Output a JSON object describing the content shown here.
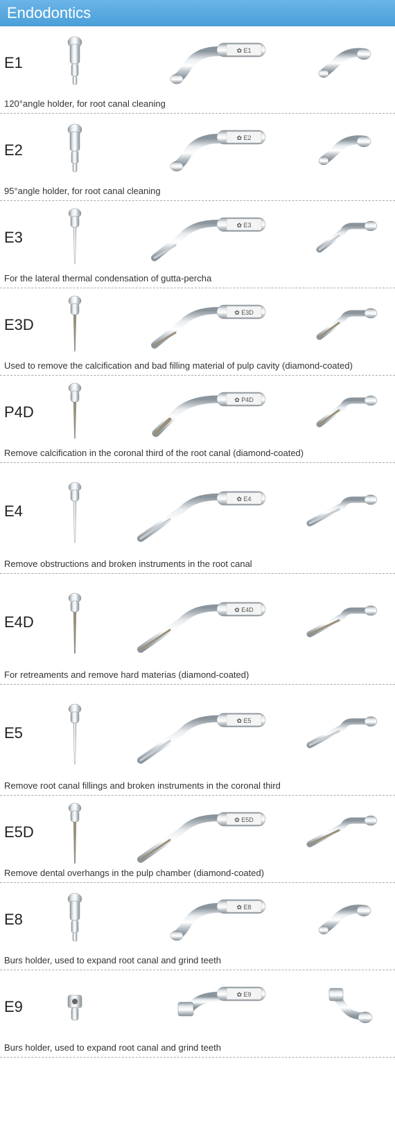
{
  "header": {
    "title": "Endodontics"
  },
  "rows": [
    {
      "code": "E1",
      "label": "E1",
      "desc": "120°angle holder, for root canal cleaning",
      "shape": "holder",
      "size": "short"
    },
    {
      "code": "E2",
      "label": "E2",
      "desc": "95°angle holder, for root canal cleaning",
      "shape": "holder",
      "size": "short"
    },
    {
      "code": "E3",
      "label": "E3",
      "desc": "For the lateral thermal condensation of gutta-percha",
      "shape": "thin",
      "size": "normal"
    },
    {
      "code": "E3D",
      "label": "E3D",
      "desc": "Used to remove the calcification and bad filling material of pulp cavity (diamond-coated)",
      "shape": "thin-diamond",
      "size": "normal"
    },
    {
      "code": "P4D",
      "label": "P4D",
      "desc": "Remove calcification in the coronal third of the root canal (diamond-coated)",
      "shape": "curved-diamond",
      "size": "normal"
    },
    {
      "code": "E4",
      "label": "E4",
      "desc": "Remove obstructions and broken instruments in the root canal",
      "shape": "long-thin",
      "size": "tall"
    },
    {
      "code": "E4D",
      "label": "E4D",
      "desc": "For retreaments and remove hard materias (diamond-coated)",
      "shape": "long-thin-diamond",
      "size": "tall"
    },
    {
      "code": "E5",
      "label": "E5",
      "desc": "Remove root canal fillings and broken instruments in the coronal third",
      "shape": "long-thin",
      "size": "tall"
    },
    {
      "code": "E5D",
      "label": "E5D",
      "desc": "Remove dental overhangs in the pulp chamber (diamond-coated)",
      "shape": "long-thin-diamond",
      "size": "normal"
    },
    {
      "code": "E8",
      "label": "E8",
      "desc": "Burs holder, used to expand root canal and grind teeth",
      "shape": "burs",
      "size": "short"
    },
    {
      "code": "E9",
      "label": "E9",
      "desc": "Burs holder, used to expand root canal and grind teeth",
      "shape": "burs-box",
      "size": "short"
    }
  ],
  "colors": {
    "header_bg_top": "#6ab4e8",
    "header_bg_bottom": "#4a9fd8",
    "header_text": "#ffffff",
    "metal_light": "#e8ecef",
    "metal_mid": "#c0c8ce",
    "metal_dark": "#8a949c",
    "diamond": "#9a8f7a",
    "text": "#333333",
    "dash": "#aaaaaa"
  }
}
